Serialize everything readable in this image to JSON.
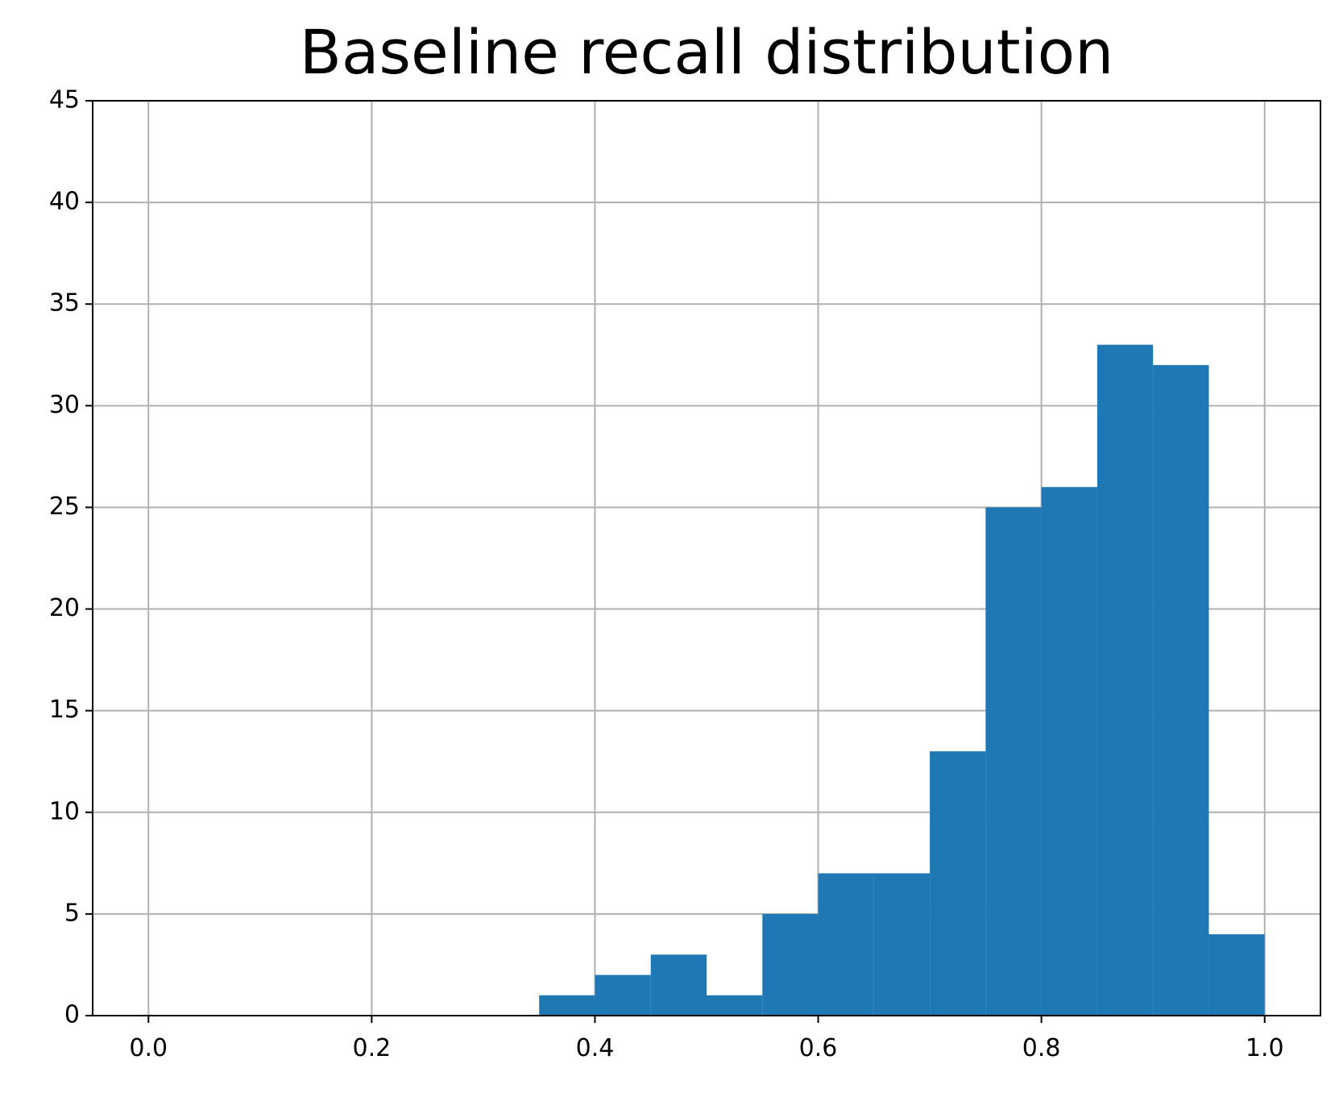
{
  "chart_data": {
    "type": "histogram",
    "title": "Baseline recall distribution",
    "bins": [
      0,
      0.05,
      0.1,
      0.15,
      0.2,
      0.25,
      0.3,
      0.35,
      0.4,
      0.45,
      0.5,
      0.55,
      0.6,
      0.65,
      0.7,
      0.75,
      0.8,
      0.85,
      0.9,
      0.95,
      1
    ],
    "values": [
      0,
      0,
      0,
      0,
      0,
      0,
      0,
      1,
      2,
      3,
      1,
      5,
      7,
      7,
      13,
      25,
      26,
      33,
      32,
      4
    ],
    "color": "#1f77b4",
    "xlim": [
      -0.05,
      1.05
    ],
    "xticks": [
      {
        "value": 0,
        "label": "0.0"
      },
      0.2,
      0.4,
      0.6,
      0.8,
      {
        "value": 1,
        "label": "1.0"
      }
    ],
    "ylim": [
      0,
      45
    ],
    "yticks": [
      0,
      5,
      10,
      15,
      20,
      25,
      30,
      35,
      40,
      45
    ],
    "grid": true
  }
}
